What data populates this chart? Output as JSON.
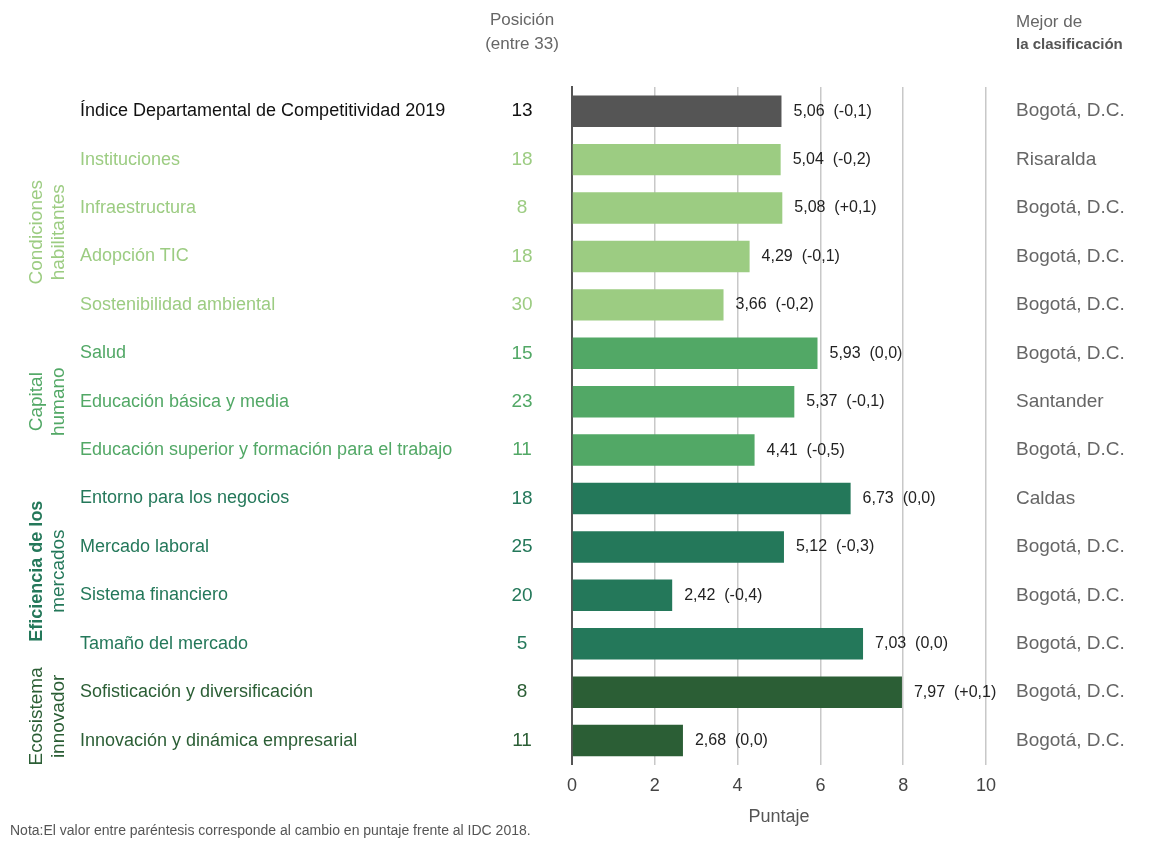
{
  "chart_data": {
    "type": "bar",
    "orientation": "horizontal",
    "xlabel": "Puntaje",
    "categories": [
      "Índice Departamental de Competitividad 2019",
      "Instituciones",
      "Infraestructura",
      "Adopción TIC",
      "Sostenibilidad ambiental",
      "Salud",
      "Educación básica y media",
      "Educación superior y formación para el trabajo",
      "Entorno para los negocios",
      "Mercado laboral",
      "Sistema financiero",
      "Tamaño del mercado",
      "Sofisticación y diversificación",
      "Innovación y dinámica empresarial"
    ],
    "values": [
      5.06,
      5.04,
      5.08,
      4.29,
      3.66,
      5.93,
      5.37,
      4.41,
      6.73,
      5.12,
      2.42,
      7.03,
      7.97,
      2.68
    ],
    "value_labels": [
      "5,06  (-0,1)",
      "5,04  (-0,2)",
      "5,08  (+0,1)",
      "4,29  (-0,1)",
      "3,66  (-0,2)",
      "5,93  (0,0)",
      "5,37  (-0,1)",
      "4,41  (-0,5)",
      "6,73  (0,0)",
      "5,12  (-0,3)",
      "2,42  (-0,4)",
      "7,03  (0,0)",
      "7,97  (+0,1)",
      "2,68  (0,0)"
    ],
    "colors": [
      "#555555",
      "#9ccc82",
      "#9ccc82",
      "#9ccc82",
      "#9ccc82",
      "#52a866",
      "#52a866",
      "#52a866",
      "#24785a",
      "#24785a",
      "#24785a",
      "#24785a",
      "#2b5e35",
      "#2b5e35"
    ],
    "xlim": [
      0,
      10
    ],
    "xticks": [
      0,
      2,
      4,
      6,
      8,
      10
    ],
    "grid": "x",
    "annotations": [
      "Posición\n(entre 33)",
      "Mejor de\nla clasificación",
      "Condiciones\nhabilitantes",
      "Capital\nhumano",
      "Eficiencia de los\nmercados",
      "Ecosistema\ninnovador",
      "Nota:El valor entre paréntesis corresponde al cambio en puntaje frente al IDC 2018.",
      "13",
      "18",
      "8",
      "18",
      "30",
      "15",
      "23",
      "11",
      "18",
      "25",
      "20",
      "5",
      "8",
      "11",
      "Bogotá, D.C.",
      "Risaralda",
      "Bogotá, D.C.",
      "Bogotá, D.C.",
      "Bogotá, D.C.",
      "Bogotá, D.C.",
      "Santander",
      "Bogotá, D.C.",
      "Caldas",
      "Bogotá, D.C.",
      "Bogotá, D.C.",
      "Bogotá, D.C.",
      "Bogotá, D.C.",
      "Bogotá, D.C."
    ]
  }
}
